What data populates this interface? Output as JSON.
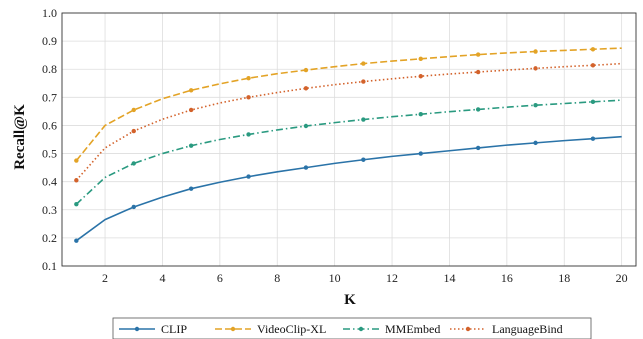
{
  "chart_data": {
    "type": "line",
    "xlabel": "K",
    "ylabel": "Recall@K",
    "xlim": [
      0.5,
      20.5
    ],
    "ylim": [
      0.1,
      1.0
    ],
    "xticks": [
      2,
      4,
      6,
      8,
      10,
      12,
      14,
      16,
      18,
      20
    ],
    "yticks": [
      0.1,
      0.2,
      0.3,
      0.4,
      0.5,
      0.6,
      0.7,
      0.8,
      0.9,
      1.0
    ],
    "grid": true,
    "legend_position": "bottom",
    "x": [
      1,
      2,
      3,
      4,
      5,
      6,
      7,
      8,
      9,
      10,
      11,
      12,
      13,
      14,
      15,
      16,
      17,
      18,
      19,
      20
    ],
    "series": [
      {
        "name": "CLIP",
        "color": "#2a73a8",
        "dash": "solid",
        "values": [
          0.19,
          0.265,
          0.31,
          0.345,
          0.375,
          0.398,
          0.418,
          0.435,
          0.45,
          0.465,
          0.478,
          0.49,
          0.5,
          0.51,
          0.52,
          0.53,
          0.538,
          0.546,
          0.553,
          0.56
        ]
      },
      {
        "name": "VideoClip-XL",
        "color": "#e3a326",
        "dash": "dashed",
        "values": [
          0.475,
          0.6,
          0.655,
          0.695,
          0.725,
          0.748,
          0.768,
          0.784,
          0.797,
          0.809,
          0.82,
          0.829,
          0.837,
          0.845,
          0.852,
          0.858,
          0.863,
          0.867,
          0.871,
          0.875
        ]
      },
      {
        "name": "MMEmbed",
        "color": "#2a9a80",
        "dash": "dashdot",
        "values": [
          0.32,
          0.415,
          0.465,
          0.5,
          0.528,
          0.55,
          0.568,
          0.584,
          0.598,
          0.61,
          0.621,
          0.631,
          0.64,
          0.649,
          0.657,
          0.665,
          0.672,
          0.678,
          0.684,
          0.69
        ]
      },
      {
        "name": "LanguageBind",
        "color": "#d3622b",
        "dash": "dotted",
        "values": [
          0.405,
          0.52,
          0.58,
          0.622,
          0.655,
          0.68,
          0.7,
          0.717,
          0.732,
          0.745,
          0.756,
          0.766,
          0.775,
          0.783,
          0.79,
          0.797,
          0.803,
          0.809,
          0.814,
          0.82
        ]
      }
    ]
  }
}
